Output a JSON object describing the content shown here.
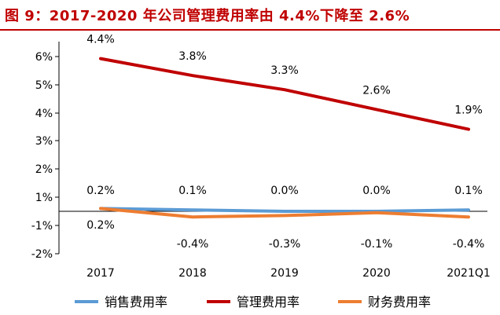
{
  "title": "图 9：2017-2020 年公司管理费用率由 4.4%下降至 2.6%",
  "chart_data": {
    "type": "line",
    "categories": [
      "2017",
      "2018",
      "2019",
      "2020",
      "2021Q1"
    ],
    "ylim": [
      -2,
      6
    ],
    "yticks": [
      "6%",
      "5%",
      "4%",
      "3%",
      "2%",
      "1%",
      "-1%",
      "-2%"
    ],
    "series": [
      {
        "name": "销售费用率",
        "color": "#5b9bd5",
        "values": [
          0.2,
          0.1,
          0.0,
          0.0,
          0.1
        ],
        "labels": [
          "0.2%",
          "0.1%",
          "0.0%",
          "0.0%",
          "0.1%"
        ]
      },
      {
        "name": "管理费用率",
        "color": "#c00000",
        "values": [
          4.4,
          3.8,
          3.3,
          2.6,
          1.9
        ],
        "labels": [
          "4.4%",
          "3.8%",
          "3.3%",
          "2.6%",
          "1.9%"
        ]
      },
      {
        "name": "财务费用率",
        "color": "#ed7d31",
        "values": [
          0.2,
          -0.4,
          -0.3,
          -0.1,
          -0.4
        ],
        "labels": [
          "0.2%",
          "-0.4%",
          "-0.3%",
          "-0.1%",
          "-0.4%"
        ]
      }
    ],
    "legend_position": "bottom",
    "grid": false
  }
}
